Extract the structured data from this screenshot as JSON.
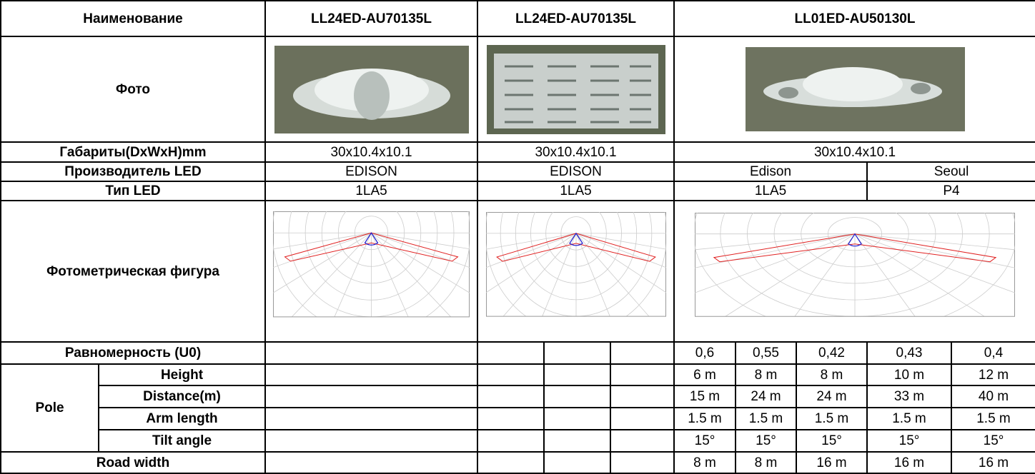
{
  "table": {
    "header": [
      "Наименование",
      "LL24ED-AU70135L",
      "LL24ED-AU70135L",
      "LL01ED-AU50130L"
    ],
    "photo_label": "Фото",
    "dimensions": {
      "label": "Габариты(DxWxH)mm",
      "values": [
        "30x10.4x10.1",
        "30x10.4x10.1",
        "30x10.4x10.1"
      ]
    },
    "led_maker": {
      "label": "Производитель LED",
      "values": [
        "EDISON",
        "EDISON",
        "Edison",
        "Seoul"
      ]
    },
    "led_type": {
      "label": "Тип LED",
      "values": [
        "1LA5",
        "1LA5",
        "1LA5",
        "P4"
      ]
    },
    "photometric_label": "Фотометрическая фигура",
    "uniformity": {
      "label": "Равномерность (U0)",
      "values": [
        "0,6",
        "0,55",
        "0,42",
        "0,43",
        "0,4"
      ]
    },
    "pole": {
      "label": "Pole",
      "rows": [
        {
          "label": "Height",
          "values": [
            "6 m",
            "8 m",
            "8 m",
            "10 m",
            "12 m"
          ]
        },
        {
          "label": "Distance(m)",
          "values": [
            "15 m",
            "24 m",
            "24 m",
            "33 m",
            "40 m"
          ]
        },
        {
          "label": "Arm length",
          "values": [
            "1.5 m",
            "1.5 m",
            "1.5 m",
            "1.5 m",
            "1.5 m"
          ]
        },
        {
          "label": "Tilt angle",
          "values": [
            "15°",
            "15°",
            "15°",
            "15°",
            "15°"
          ]
        }
      ]
    },
    "road_width": {
      "label": "Road width",
      "values": [
        "8 m",
        "8 m",
        "16 m",
        "16 m",
        "16 m"
      ]
    }
  }
}
